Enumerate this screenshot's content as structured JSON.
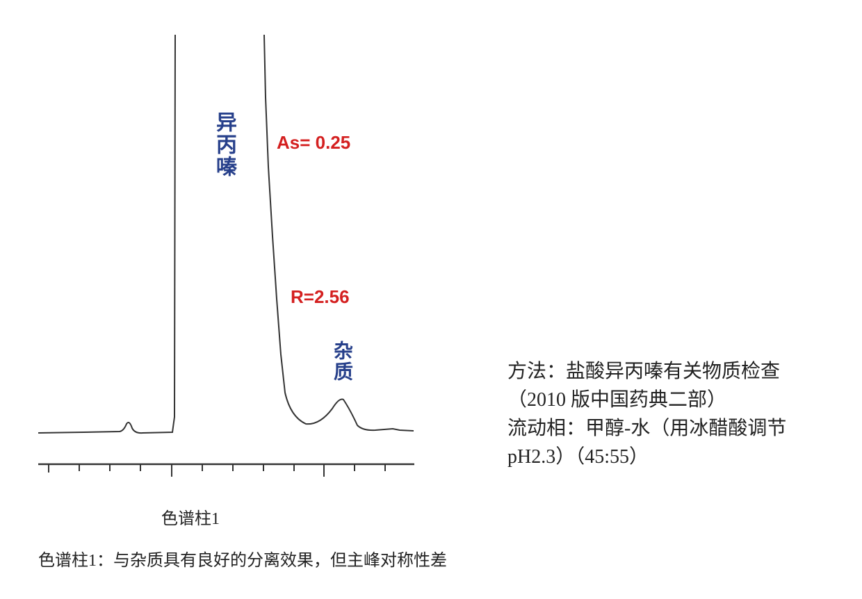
{
  "peak_labels": {
    "main": "异丙嗪",
    "impurity": "杂质"
  },
  "annotations": {
    "asymmetry": "As= 0.25",
    "resolution": "R=2.56"
  },
  "axis_label": "色谱柱1",
  "method": {
    "lines": [
      "方法：盐酸异丙嗪有关物质检查",
      "（2010 版中国药典二部）",
      "流动相：甲醇-水（用冰醋酸调节",
      "pH2.3）（45:55）"
    ]
  },
  "caption": "色谱柱1：与杂质具有良好的分离效果，但主峰对称性差"
}
